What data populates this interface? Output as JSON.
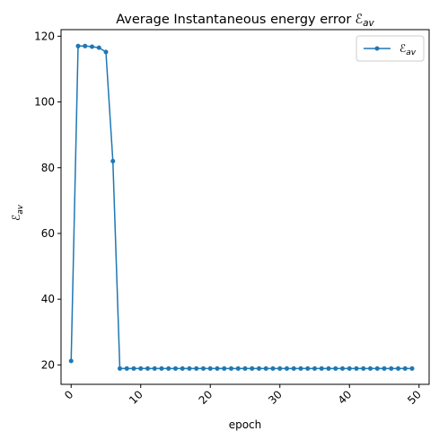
{
  "chart_data": {
    "type": "line",
    "title": "Average Instantaneous energy error",
    "title_symbol": "ℰ",
    "title_subscript": "av",
    "xlabel": "epoch",
    "ylabel_symbol": "ℰ",
    "ylabel_subscript": "av",
    "xlim": [
      -1.45,
      51.45
    ],
    "ylim": [
      14.1,
      122.0
    ],
    "xticks": [
      0,
      10,
      20,
      30,
      40,
      50
    ],
    "xtick_labels": [
      "0",
      "10",
      "20",
      "30",
      "40",
      "50"
    ],
    "xtick_rotation": -45,
    "yticks": [
      20,
      40,
      60,
      80,
      100,
      120
    ],
    "ytick_labels": [
      "20",
      "40",
      "60",
      "80",
      "100",
      "120"
    ],
    "grid": false,
    "legend_position": "top-right",
    "series": [
      {
        "name": "ℰav",
        "legend_symbol": "ℰ",
        "legend_subscript": "av",
        "color": "#1f77b4",
        "marker": "circle",
        "x": [
          0,
          1,
          2,
          3,
          4,
          5,
          6,
          7,
          8,
          9,
          10,
          11,
          12,
          13,
          14,
          15,
          16,
          17,
          18,
          19,
          20,
          21,
          22,
          23,
          24,
          25,
          26,
          27,
          28,
          29,
          30,
          31,
          32,
          33,
          34,
          35,
          36,
          37,
          38,
          39,
          40,
          41,
          42,
          43,
          44,
          45,
          46,
          47,
          48,
          49
        ],
        "y": [
          21.2,
          117.0,
          117.0,
          116.8,
          116.5,
          115.2,
          82.0,
          18.9,
          18.9,
          18.9,
          18.9,
          18.9,
          18.9,
          18.9,
          18.9,
          18.9,
          18.9,
          18.9,
          18.9,
          18.9,
          18.9,
          18.9,
          18.9,
          18.9,
          18.9,
          18.9,
          18.9,
          18.9,
          18.9,
          18.9,
          18.9,
          18.9,
          18.9,
          18.9,
          18.9,
          18.9,
          18.9,
          18.9,
          18.9,
          18.9,
          18.9,
          18.9,
          18.9,
          18.9,
          18.9,
          18.9,
          18.9,
          18.9,
          18.9,
          18.9
        ]
      }
    ]
  }
}
